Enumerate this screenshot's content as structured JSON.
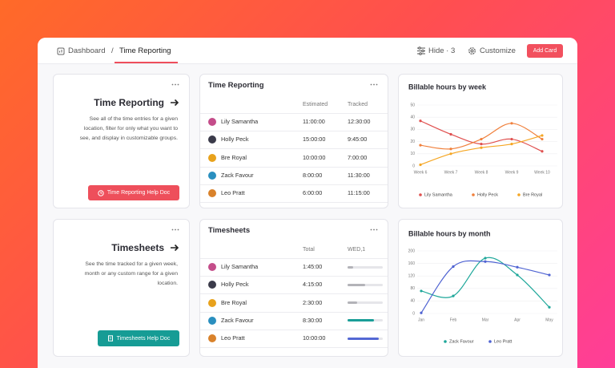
{
  "header": {
    "breadcrumb": [
      "Dashboard",
      "Time Reporting"
    ],
    "separator": "/",
    "hide": "Hide · 3",
    "customize": "Customize",
    "add_card": "Add Card"
  },
  "cards": {
    "time_reporting": {
      "title": "Time Reporting",
      "description_lines": [
        "See all of the time entries for a given",
        "location, filter for only what you want to",
        "see, and display in customizable groups."
      ],
      "button": "Time Reporting Help Doc"
    },
    "timesheets": {
      "title": "Timesheets",
      "description_lines": [
        "See the time tracked for a given week,",
        "month or any custom range for a given",
        "location."
      ],
      "button": "Timesheets Help Doc"
    }
  },
  "time_table": {
    "title": "Time Reporting",
    "columns": [
      "Estimated",
      "Tracked"
    ],
    "rows": [
      [
        "Lily Samantha",
        "11:00:00",
        "12:30:00"
      ],
      [
        "Holly Peck",
        "15:00:00",
        "9:45:00"
      ],
      [
        "Bre Royal",
        "10:00:00",
        "7:00:00"
      ],
      [
        "Zack Favour",
        "8:00:00",
        "11:30:00"
      ],
      [
        "Leo Pratt",
        "6:00:00",
        "11:15:00"
      ]
    ]
  },
  "timesheets_table": {
    "title": "Timesheets",
    "columns": [
      "Total",
      "WED,1"
    ],
    "rows": [
      [
        "Lily Samantha",
        "1:45:00"
      ],
      [
        "Holly Peck",
        "4:15:00"
      ],
      [
        "Bre Royal",
        "2:30:00"
      ],
      [
        "Zack Favour",
        "8:30:00"
      ],
      [
        "Leo Pratt",
        "10:00:00"
      ]
    ],
    "progress": [
      16,
      50,
      27,
      75,
      89
    ],
    "progress_colors": [
      "#b3b3b8",
      "#b3b3b8",
      "#b3b3b8",
      "#1a9e98",
      "#5468d4"
    ]
  },
  "chart_data": [
    {
      "type": "line",
      "title": "Billable hours by week",
      "categories": [
        "Week 6",
        "Week 7",
        "Week 8",
        "Week 9",
        "Week 10"
      ],
      "series": [
        {
          "name": "Lily Samantha",
          "color": "#e0504f",
          "values": [
            37,
            26,
            18,
            22,
            12
          ]
        },
        {
          "name": "Holly Peck",
          "color": "#f0803c",
          "values": [
            17,
            14,
            22,
            35,
            22
          ]
        },
        {
          "name": "Bre Royal",
          "color": "#f5a623",
          "values": [
            1,
            10,
            15,
            18,
            25
          ]
        }
      ],
      "ylim": [
        0,
        50
      ],
      "yticks": [
        0,
        10,
        20,
        30,
        40,
        50
      ],
      "grid": true
    },
    {
      "type": "line",
      "title": "Billable hours by month",
      "categories": [
        "Jan",
        "Feb",
        "Mar",
        "Apr",
        "May"
      ],
      "series": [
        {
          "name": "Zack Favour",
          "color": "#1ea79a",
          "values": [
            72,
            56,
            177,
            123,
            20
          ]
        },
        {
          "name": "Leo Pratt",
          "color": "#4f63d2",
          "values": [
            2,
            150,
            166,
            148,
            123
          ]
        }
      ],
      "ylim": [
        0,
        200
      ],
      "yticks": [
        0,
        40,
        80,
        120,
        160,
        200
      ],
      "grid": true
    }
  ]
}
